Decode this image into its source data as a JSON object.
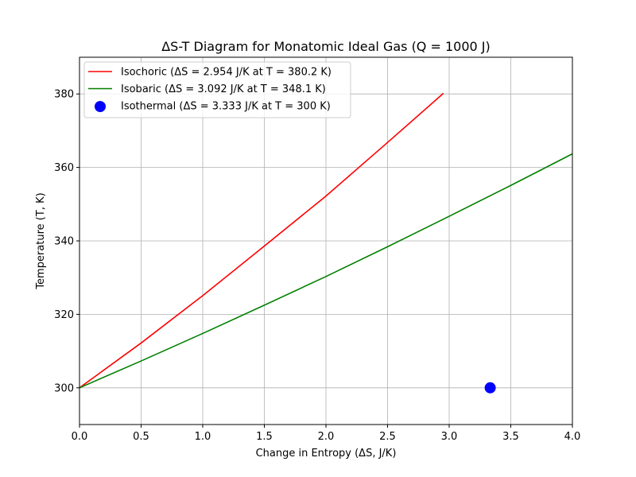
{
  "chart_data": {
    "type": "line",
    "title": "ΔS-T Diagram for Monatomic Ideal Gas (Q = 1000 J)",
    "xlabel": "Change in Entropy (ΔS, J/K)",
    "ylabel": "Temperature (T, K)",
    "xlim": [
      0,
      4
    ],
    "ylim": [
      290,
      390
    ],
    "xticks": [
      0,
      0.5,
      1.0,
      1.5,
      2.0,
      2.5,
      3.0,
      3.5,
      4.0
    ],
    "xtick_labels": [
      "0.0",
      "0.5",
      "1.0",
      "1.5",
      "2.0",
      "2.5",
      "3.0",
      "3.5",
      "4.0"
    ],
    "yticks": [
      300,
      320,
      340,
      360,
      380
    ],
    "ytick_labels": [
      "300",
      "320",
      "340",
      "360",
      "380"
    ],
    "grid": true,
    "legend_position": "top-left",
    "series": [
      {
        "name": "Isochoric (ΔS = 2.954 J/K at T = 380.2 K)",
        "kind": "line",
        "color": "#ff0000",
        "x": [
          0,
          0.5,
          1.0,
          1.5,
          2.0,
          2.5,
          2.954
        ],
        "y": [
          300,
          312.2,
          325.1,
          338.6,
          352.2,
          366.8,
          380.2
        ]
      },
      {
        "name": "Isobaric (ΔS = 3.092 J/K at T = 348.1 K)",
        "kind": "line",
        "color": "#008000",
        "x": [
          0,
          0.5,
          1.0,
          1.5,
          2.0,
          2.5,
          3.0,
          3.5,
          4.0
        ],
        "y": [
          300,
          307.3,
          314.8,
          322.5,
          330.3,
          338.4,
          346.7,
          355.1,
          363.7
        ]
      },
      {
        "name": "Isothermal (ΔS = 3.333 J/K at T = 300 K)",
        "kind": "scatter",
        "color": "#0000ff",
        "x": [
          3.333
        ],
        "y": [
          300
        ]
      }
    ]
  }
}
